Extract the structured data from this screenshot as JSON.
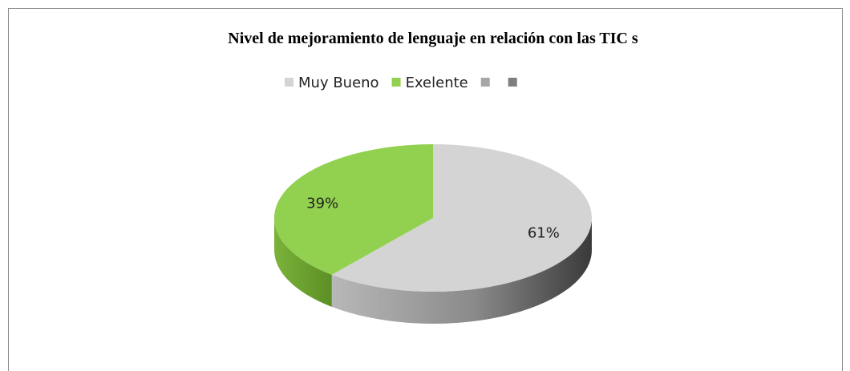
{
  "chart_data": {
    "type": "pie3d",
    "title": "Nivel de mejoramiento de lenguaje en relación con las TIC s",
    "categories": [
      "Muy  Bueno",
      "Exelente",
      null,
      null
    ],
    "values": [
      61,
      39,
      0,
      0
    ],
    "value_labels": [
      "61%",
      "39%",
      null,
      null
    ],
    "colors": [
      "#d4d4d4",
      "#92d050",
      "#a6a6a6",
      "#7f7f7f"
    ],
    "legend": "top"
  }
}
